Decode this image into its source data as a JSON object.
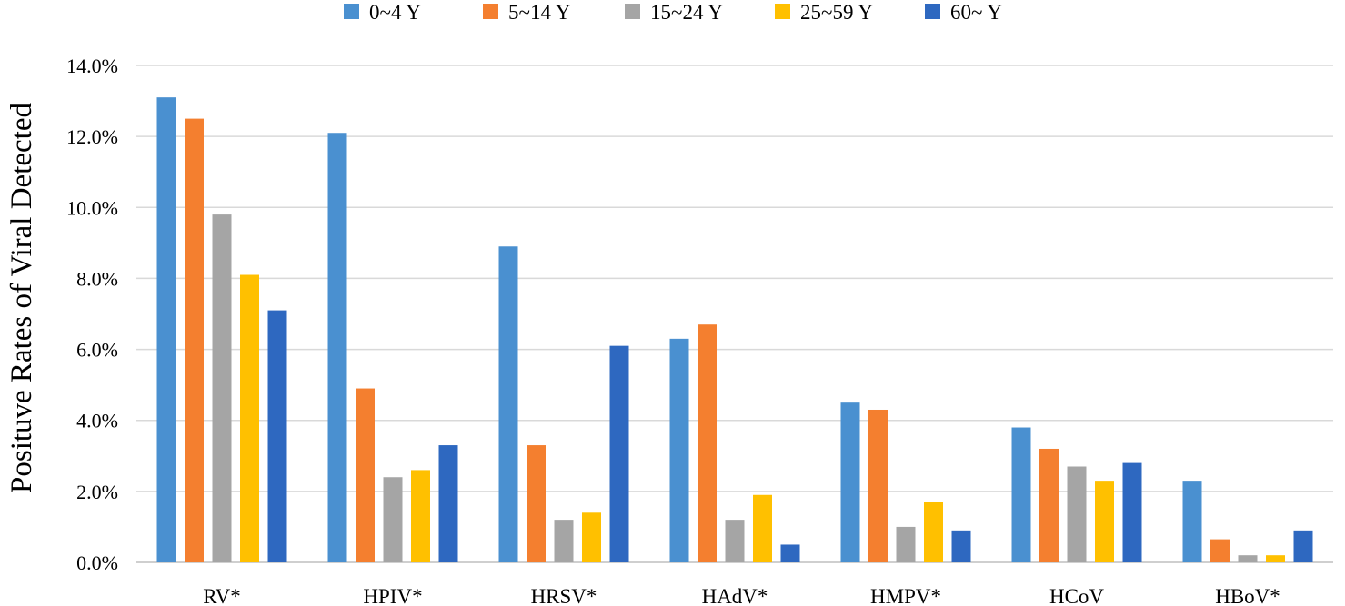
{
  "chart_data": {
    "type": "bar",
    "title": "",
    "xlabel": "",
    "ylabel": "Posituve Rates of Viral Detected",
    "ylim": [
      0,
      14
    ],
    "y_tick_values": [
      0,
      2,
      4,
      6,
      8,
      10,
      12,
      14
    ],
    "y_tick_labels": [
      "0.0%",
      "2.0%",
      "4.0%",
      "6.0%",
      "8.0%",
      "10.0%",
      "12.0%",
      "14.0%"
    ],
    "grid": true,
    "legend_position": "top",
    "categories": [
      "RV*",
      "HPIV*",
      "HRSV*",
      "HAdV*",
      "HMPV*",
      "HCoV",
      "HBoV*"
    ],
    "series": [
      {
        "name": "0~4 Y",
        "color": "#4a90d0",
        "values": [
          13.1,
          12.1,
          8.9,
          6.3,
          4.5,
          3.8,
          2.3
        ]
      },
      {
        "name": "5~14 Y",
        "color": "#f47f2f",
        "values": [
          12.5,
          4.9,
          3.3,
          6.7,
          4.3,
          3.2,
          0.65
        ]
      },
      {
        "name": "15~24 Y",
        "color": "#a5a5a5",
        "values": [
          9.8,
          2.4,
          1.2,
          1.2,
          1.0,
          2.7,
          0.2
        ]
      },
      {
        "name": "25~59 Y",
        "color": "#ffc000",
        "values": [
          8.1,
          2.6,
          1.4,
          1.9,
          1.7,
          2.3,
          0.2
        ]
      },
      {
        "name": "60~ Y",
        "color": "#2e68c0",
        "values": [
          7.1,
          3.3,
          6.1,
          0.5,
          0.9,
          2.8,
          0.9
        ]
      }
    ]
  }
}
